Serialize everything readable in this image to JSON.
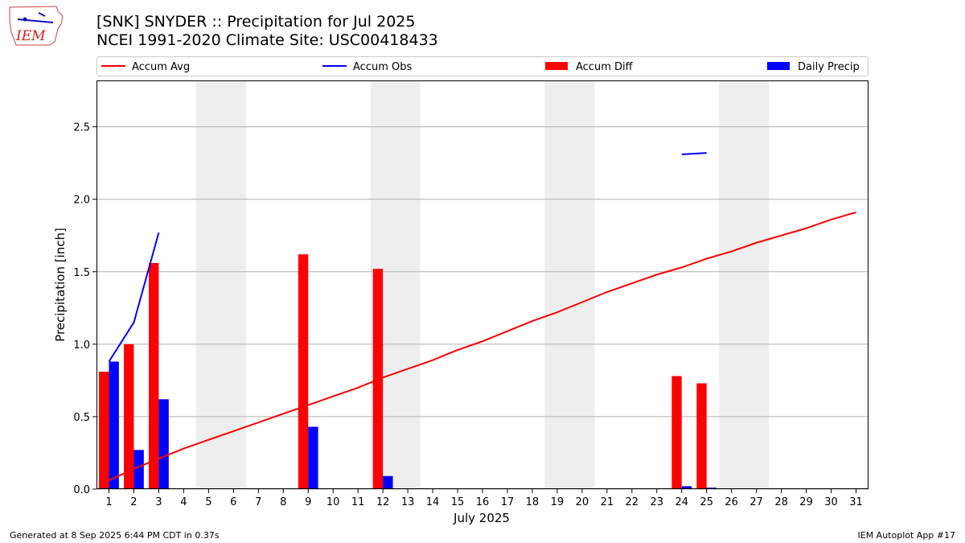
{
  "header": {
    "title_line1": "[SNK] SNYDER :: Precipitation for Jul 2025",
    "title_line2": "NCEI 1991-2020 Climate Site: USC00418433"
  },
  "footer": {
    "generated": "Generated at 8 Sep 2025 6:44 PM CDT in 0.37s",
    "app": "IEM Autoplot App #17"
  },
  "logo": {
    "text": "IEM",
    "icon": "iem-iowa-logo-icon"
  },
  "chart_data": {
    "type": "bar",
    "xlabel": "July 2025",
    "ylabel": "Precipitation [inch]",
    "xlim": [
      0.5,
      31.5
    ],
    "ylim": [
      0,
      2.82
    ],
    "yticks": [
      "0.0",
      "0.5",
      "1.0",
      "1.5",
      "2.0",
      "2.5"
    ],
    "grid": "horizontal",
    "legend_placement": "top",
    "categories": [
      "1",
      "2",
      "3",
      "4",
      "5",
      "6",
      "7",
      "8",
      "9",
      "10",
      "11",
      "12",
      "13",
      "14",
      "15",
      "16",
      "17",
      "18",
      "19",
      "20",
      "21",
      "22",
      "23",
      "24",
      "25",
      "26",
      "27",
      "28",
      "29",
      "30",
      "31"
    ],
    "weekend_shading": [
      [
        5,
        6
      ],
      [
        12,
        13
      ],
      [
        19,
        20
      ],
      [
        26,
        27
      ]
    ],
    "series": [
      {
        "name": "Accum Avg",
        "kind": "line",
        "color": "#ff0000",
        "values": [
          0.06,
          0.14,
          0.21,
          0.28,
          0.34,
          0.4,
          0.46,
          0.52,
          0.58,
          0.64,
          0.7,
          0.77,
          0.83,
          0.89,
          0.96,
          1.02,
          1.09,
          1.16,
          1.22,
          1.29,
          1.36,
          1.42,
          1.48,
          1.53,
          1.59,
          1.64,
          1.7,
          1.75,
          1.8,
          1.86,
          1.91
        ]
      },
      {
        "name": "Accum Obs",
        "kind": "line",
        "color": "#0000ff",
        "values": [
          0.88,
          1.15,
          1.77,
          null,
          null,
          null,
          null,
          null,
          null,
          null,
          null,
          null,
          null,
          null,
          null,
          null,
          null,
          null,
          null,
          null,
          null,
          null,
          null,
          2.31,
          2.32,
          null,
          null,
          null,
          null,
          null,
          null
        ]
      },
      {
        "name": "Accum Diff",
        "kind": "bar",
        "color": "#ff0000",
        "values": [
          0.81,
          1.0,
          1.56,
          0,
          0,
          0,
          0,
          0,
          1.62,
          0,
          0,
          1.52,
          0,
          0,
          0,
          0,
          0,
          0,
          0,
          0,
          0,
          0,
          0,
          0.78,
          0.73,
          0,
          0,
          0,
          0,
          0,
          0
        ]
      },
      {
        "name": "Daily Precip",
        "kind": "bar",
        "color": "#0000ff",
        "values": [
          0.88,
          0.27,
          0.62,
          0,
          0,
          0,
          0,
          0,
          0.43,
          0,
          0,
          0.09,
          0,
          0,
          0,
          0,
          0,
          0,
          0,
          0,
          0,
          0,
          0,
          0.02,
          0.01,
          0,
          0,
          0,
          0,
          0,
          0
        ]
      }
    ]
  }
}
